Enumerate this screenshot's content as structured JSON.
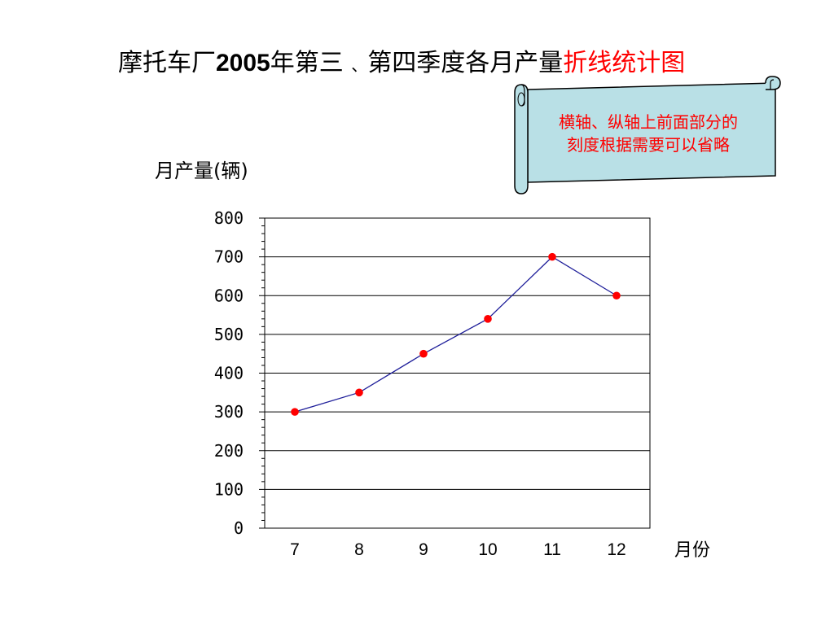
{
  "title": {
    "part1": "摩托车厂",
    "year": "2005",
    "part2": "年第三",
    "sep": "、",
    "part3": "第四季度各月产量",
    "highlight": "折线统计图"
  },
  "note": {
    "line1": "横轴、纵轴上前面部分的",
    "line2": "刻度根据需要可以省略"
  },
  "colors": {
    "line": "#1f1f9a",
    "marker": "#ff0000",
    "highlight": "#ff0000",
    "scroll_fill": "#b9e0e6"
  },
  "chart_data": {
    "type": "line",
    "ylabel": "月产量(辆)",
    "xlabel": "月份",
    "categories": [
      "7",
      "8",
      "9",
      "10",
      "11",
      "12"
    ],
    "series": [
      {
        "values": [
          300,
          350,
          450,
          540,
          700,
          600
        ]
      }
    ],
    "ylim": [
      0,
      800
    ],
    "yticks": [
      0,
      100,
      200,
      300,
      400,
      500,
      600,
      700,
      800
    ],
    "grid": true
  }
}
